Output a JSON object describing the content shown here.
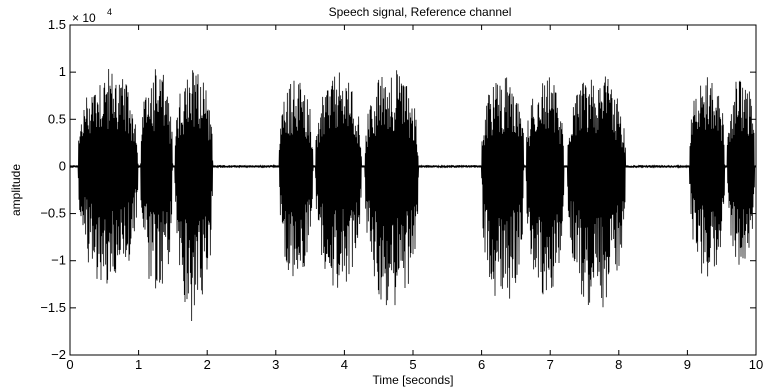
{
  "chart_data": {
    "type": "line",
    "title": "Speech signal, Reference channel",
    "xlabel": "Time [seconds]",
    "ylabel": "amplitude",
    "y_exponent_label": "× 10",
    "y_exponent_power": "4",
    "xlim": [
      0,
      10
    ],
    "ylim": [
      -2,
      1.5
    ],
    "y_unit_scale": 10000,
    "xticks": [
      0,
      1,
      2,
      3,
      4,
      5,
      6,
      7,
      8,
      9,
      10
    ],
    "xtick_labels": [
      "0",
      "1",
      "2",
      "3",
      "4",
      "5",
      "6",
      "7",
      "8",
      "9",
      "10"
    ],
    "yticks": [
      -2,
      -1.5,
      -1,
      -0.5,
      0,
      0.5,
      1,
      1.5
    ],
    "ytick_labels": [
      "−2",
      "−1.5",
      "−1",
      "−0.5",
      "0",
      "0.5",
      "1",
      "1.5"
    ],
    "grid": false,
    "line_color": "#000000",
    "series": [
      {
        "segments": [
          {
            "start": 0.12,
            "end": 1.0,
            "peak_pos": 1.05,
            "peak_neg": -1.3
          },
          {
            "start": 1.03,
            "end": 1.5,
            "peak_pos": 1.05,
            "peak_neg": -1.4
          },
          {
            "start": 1.53,
            "end": 2.08,
            "peak_pos": 1.08,
            "peak_neg": -1.72
          },
          {
            "start": 3.05,
            "end": 3.55,
            "peak_pos": 0.95,
            "peak_neg": -1.25
          },
          {
            "start": 3.58,
            "end": 4.25,
            "peak_pos": 1.0,
            "peak_neg": -1.3
          },
          {
            "start": 4.3,
            "end": 5.08,
            "peak_pos": 1.05,
            "peak_neg": -1.55
          },
          {
            "start": 6.0,
            "end": 6.62,
            "peak_pos": 0.97,
            "peak_neg": -1.5
          },
          {
            "start": 6.65,
            "end": 7.2,
            "peak_pos": 0.98,
            "peak_neg": -1.45
          },
          {
            "start": 7.25,
            "end": 8.1,
            "peak_pos": 1.0,
            "peak_neg": -1.55
          },
          {
            "start": 9.03,
            "end": 9.55,
            "peak_pos": 0.97,
            "peak_neg": -1.22
          },
          {
            "start": 9.58,
            "end": 9.98,
            "peak_pos": 0.97,
            "peak_neg": -1.08
          }
        ],
        "noise_floor": 0.01
      }
    ]
  }
}
